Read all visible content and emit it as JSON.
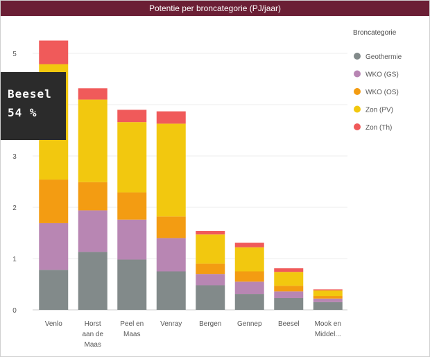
{
  "chart_data": {
    "type": "bar",
    "stacked": true,
    "title": "Potentie per broncategorie (PJ/jaar)",
    "xlabel": "",
    "ylabel": "",
    "ylim": [
      0,
      5.3
    ],
    "yticks": [
      0,
      1,
      2,
      3,
      4,
      5
    ],
    "grid": true,
    "legend_position": "right",
    "legend_title": "Broncategorie",
    "categories": [
      [
        "Venlo"
      ],
      [
        "Horst",
        "aan de",
        "Maas"
      ],
      [
        "Peel en",
        "Maas"
      ],
      [
        "Venray"
      ],
      [
        "Bergen"
      ],
      [
        "Gennep"
      ],
      [
        "Beesel"
      ],
      [
        "Mook en",
        "Middel..."
      ]
    ],
    "series": [
      {
        "name": "Geothermie",
        "color": "#828a8a",
        "values": [
          0.78,
          1.13,
          0.98,
          0.75,
          0.48,
          0.31,
          0.23,
          0.15
        ]
      },
      {
        "name": "WKO (GS)",
        "color": "#b886b3",
        "values": [
          0.91,
          0.81,
          0.78,
          0.65,
          0.22,
          0.24,
          0.13,
          0.07
        ]
      },
      {
        "name": "WKO (OS)",
        "color": "#f39c12",
        "values": [
          0.85,
          0.55,
          0.53,
          0.42,
          0.2,
          0.2,
          0.11,
          0.05
        ]
      },
      {
        "name": "Zon (PV)",
        "color": "#f2c80f",
        "values": [
          2.25,
          1.61,
          1.37,
          1.81,
          0.57,
          0.47,
          0.27,
          0.11
        ]
      },
      {
        "name": "Zon (Th)",
        "color": "#f05a5a",
        "values": [
          0.46,
          0.22,
          0.24,
          0.24,
          0.07,
          0.09,
          0.07,
          0.02
        ]
      }
    ]
  },
  "tooltip": {
    "name": "Beesel",
    "value": "54 %"
  }
}
